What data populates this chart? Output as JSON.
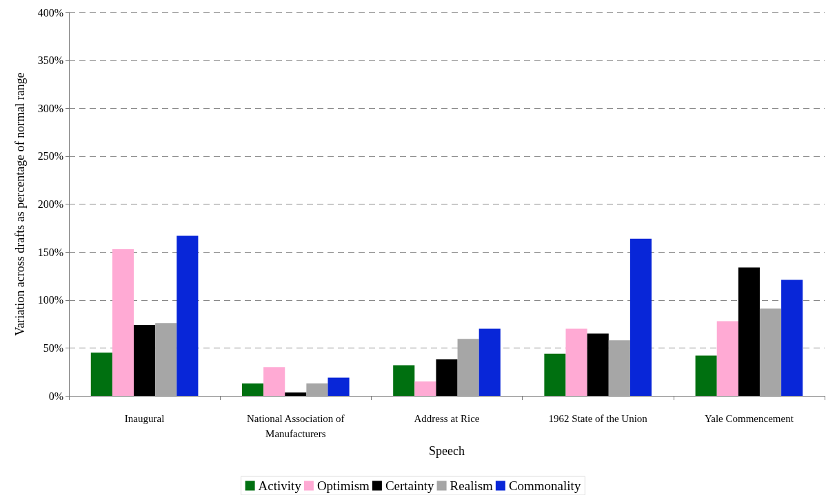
{
  "chart_data": {
    "type": "bar",
    "xlabel": "Speech",
    "ylabel": "Variation across drafts as percentage of normal range",
    "categories": [
      "Inaugural",
      "National Association of\nManufacturers",
      "Address at Rice",
      "1962 State of the Union",
      "Yale Commencement"
    ],
    "series": [
      {
        "name": "Activity",
        "color": "#007010",
        "values": [
          45,
          13,
          32,
          44,
          42
        ]
      },
      {
        "name": "Optimism",
        "color": "#ffaad4",
        "values": [
          153,
          30,
          15,
          70,
          78
        ]
      },
      {
        "name": "Certainty",
        "color": "#000000",
        "values": [
          74,
          3.5,
          38,
          65,
          134
        ]
      },
      {
        "name": "Realism",
        "color": "#a6a6a6",
        "values": [
          76,
          13,
          59.5,
          58,
          91
        ]
      },
      {
        "name": "Commonality",
        "color": "#0826d8",
        "values": [
          167,
          19,
          70,
          164,
          121
        ]
      }
    ],
    "ylim": [
      0,
      400
    ],
    "yticks": [
      {
        "value": 0,
        "label": "0%"
      },
      {
        "value": 50,
        "label": "50%"
      },
      {
        "value": 100,
        "label": "100%"
      },
      {
        "value": 150,
        "label": "150%"
      },
      {
        "value": 200,
        "label": "200%"
      },
      {
        "value": 250,
        "label": "250%"
      },
      {
        "value": 300,
        "label": "300%"
      },
      {
        "value": 350,
        "label": "350%"
      },
      {
        "value": 400,
        "label": "400%"
      }
    ],
    "grid": "y",
    "legend": "bottom"
  }
}
